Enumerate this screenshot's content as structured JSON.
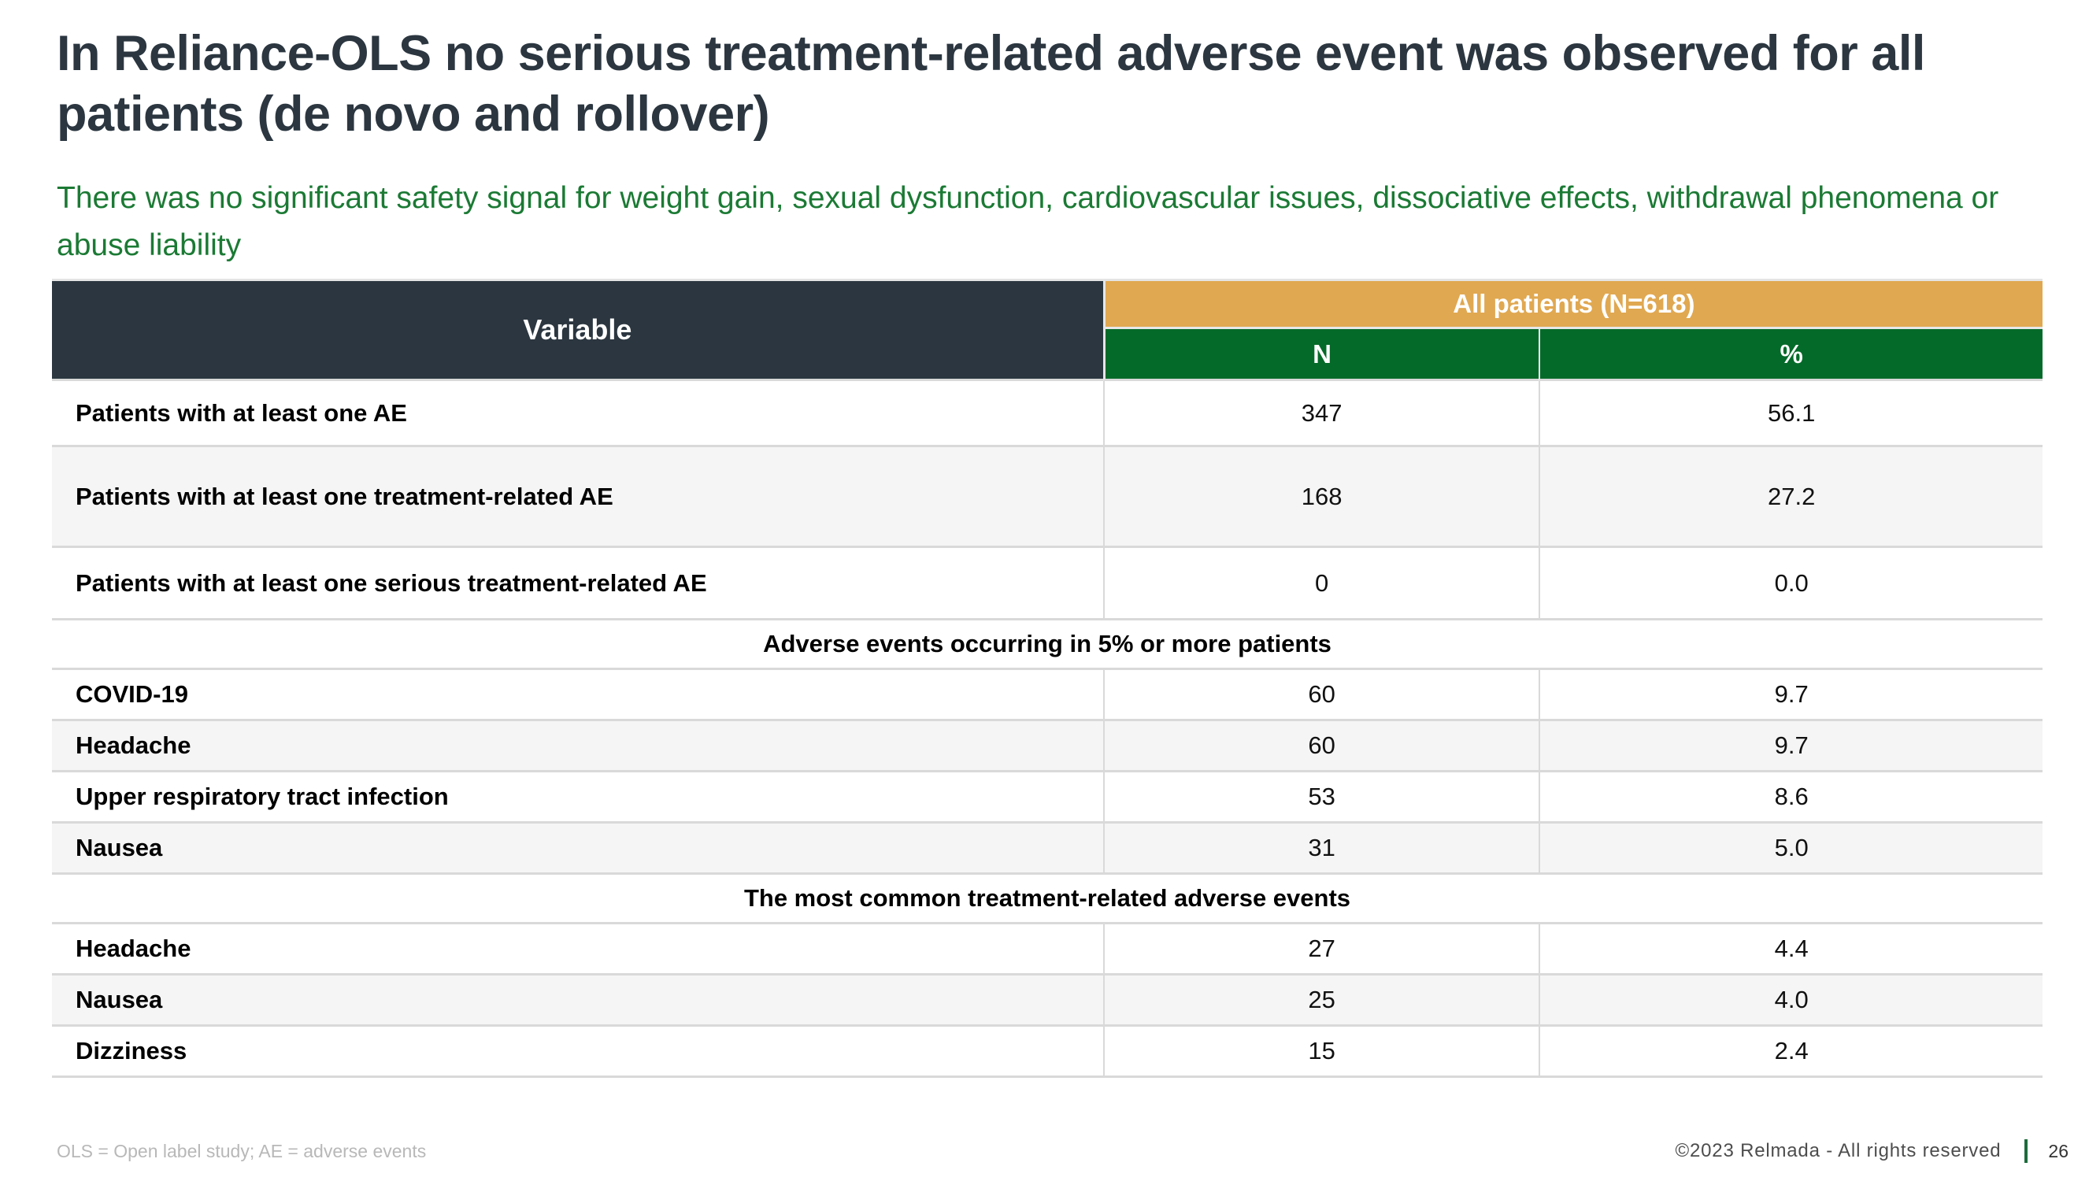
{
  "slide": {
    "title": "In Reliance-OLS no serious treatment-related adverse event was observed for all patients (de novo and rollover)",
    "subtitle": "There was no significant safety signal for weight gain, sexual dysfunction, cardiovascular issues, dissociative effects, withdrawal phenomena or abuse liability"
  },
  "table": {
    "columns": {
      "variable": "Variable",
      "group": "All patients (N=618)",
      "n": "N",
      "pct": "%"
    },
    "rows": [
      {
        "type": "data",
        "label": "Patients with at least one AE",
        "n": "347",
        "pct": "56.1"
      },
      {
        "type": "data",
        "label": "Patients with at least one treatment-related AE",
        "n": "168",
        "pct": "27.2"
      },
      {
        "type": "data",
        "label": "Patients with at least one serious treatment-related AE",
        "n": "0",
        "pct": "0.0"
      },
      {
        "type": "section",
        "label": "Adverse events occurring in 5% or more patients"
      },
      {
        "type": "data",
        "label": "COVID-19",
        "n": "60",
        "pct": "9.7"
      },
      {
        "type": "data",
        "label": "Headache",
        "n": "60",
        "pct": "9.7"
      },
      {
        "type": "data",
        "label": "Upper respiratory tract infection",
        "n": "53",
        "pct": "8.6"
      },
      {
        "type": "data",
        "label": "Nausea",
        "n": "31",
        "pct": "5.0"
      },
      {
        "type": "section",
        "label": "The most common treatment-related adverse events"
      },
      {
        "type": "data",
        "label": "Headache",
        "n": "27",
        "pct": "4.4"
      },
      {
        "type": "data",
        "label": "Nausea",
        "n": "25",
        "pct": "4.0"
      },
      {
        "type": "data",
        "label": "Dizziness",
        "n": "15",
        "pct": "2.4"
      }
    ]
  },
  "footer": {
    "note": "OLS = Open label study; AE = adverse events",
    "copyright": "©2023 Relmada - All rights reserved",
    "page": "26"
  },
  "colors": {
    "title": "#2B3640",
    "subtitle_green": "#1B7A34",
    "header_dark": "#2B3640",
    "header_orange": "#E0A851",
    "header_green": "#046A29",
    "row_stripe": "#F5F5F5",
    "border": "#D9D9D9",
    "footer_bar_green": "#1E6B3C"
  }
}
